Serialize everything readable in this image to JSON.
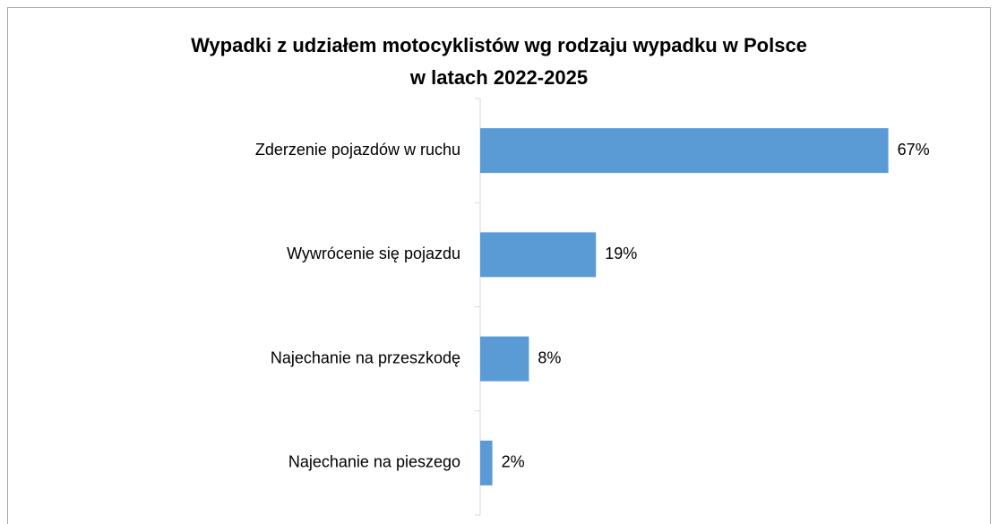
{
  "chart_data": {
    "type": "bar",
    "orientation": "horizontal",
    "title": [
      "Wypadki z udziałem motocyklistów wg rodzaju wypadku w Polsce",
      "w latach 2022-2025"
    ],
    "categories": [
      "Zderzenie pojazdów w ruchu",
      "Wywrócenie się pojazdu",
      "Najechanie na przeszkodę",
      "Najechanie na pieszego"
    ],
    "values": [
      67,
      19,
      8,
      2
    ],
    "value_labels": [
      "67%",
      "19%",
      "8%",
      "2%"
    ],
    "color": "#5b9bd5"
  }
}
